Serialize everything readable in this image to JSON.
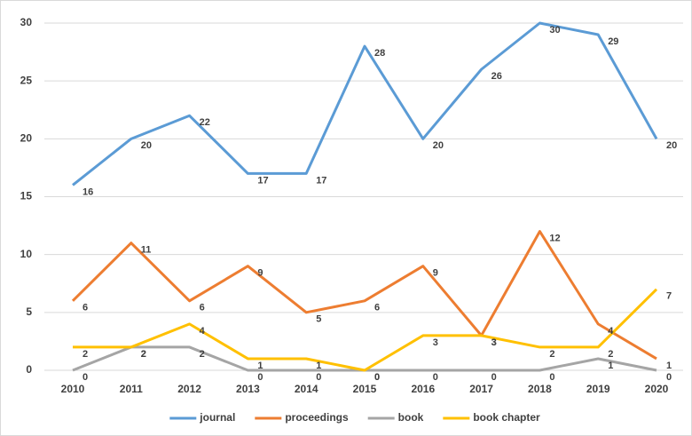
{
  "chart_data": {
    "type": "line",
    "categories": [
      "2010",
      "2011",
      "2012",
      "2013",
      "2014",
      "2015",
      "2016",
      "2017",
      "2018",
      "2019",
      "2020"
    ],
    "series": [
      {
        "name": "journal",
        "color": "#5b9bd5",
        "values": [
          16,
          20,
          22,
          17,
          17,
          28,
          20,
          26,
          30,
          29,
          20
        ]
      },
      {
        "name": "proceedings",
        "color": "#ed7d31",
        "values": [
          6,
          11,
          6,
          9,
          5,
          6,
          9,
          3,
          12,
          4,
          1
        ]
      },
      {
        "name": "book",
        "color": "#a5a5a5",
        "values": [
          0,
          2,
          2,
          0,
          0,
          0,
          0,
          0,
          0,
          1,
          0
        ]
      },
      {
        "name": "book chapter",
        "color": "#ffc000",
        "values": [
          2,
          2,
          4,
          1,
          1,
          0,
          3,
          3,
          2,
          2,
          7
        ]
      }
    ],
    "ylim": [
      0,
      30
    ],
    "yticks": [
      0,
      5,
      10,
      15,
      20,
      25,
      30
    ],
    "grid": true,
    "legend": "bottom"
  }
}
